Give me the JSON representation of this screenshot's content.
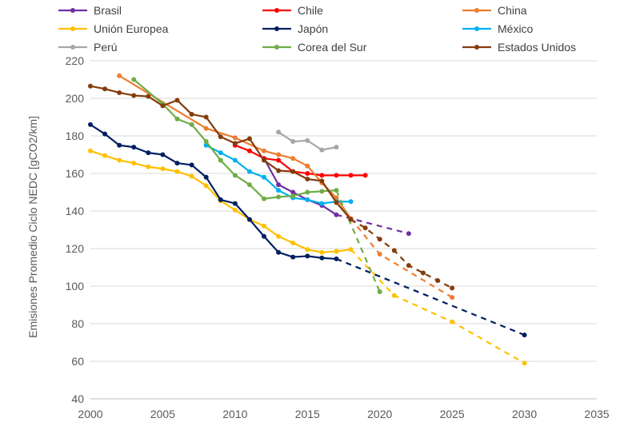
{
  "chart_data": {
    "type": "line",
    "title": "",
    "xlabel": "",
    "ylabel": "Emisiones Promedio Ciclo NEDC [gCO2/km]",
    "xlim": [
      2000,
      2035
    ],
    "ylim": [
      40,
      220
    ],
    "x_ticks": [
      "2000",
      "2005",
      "2010",
      "2015",
      "2020",
      "2025",
      "2030",
      "2035"
    ],
    "y_ticks": [
      "40",
      "60",
      "80",
      "100",
      "120",
      "140",
      "160",
      "180",
      "200",
      "220"
    ],
    "grid": "horizontal",
    "legend_position": "top",
    "series": [
      {
        "name": "Brasil",
        "color": "#7030A0",
        "x": [
          2012,
          2013,
          2014,
          2015,
          2016,
          2017
        ],
        "y": [
          168,
          154,
          150,
          146,
          143,
          138
        ],
        "projection": {
          "x": [
            2017,
            2022
          ],
          "y": [
            138,
            128
          ]
        }
      },
      {
        "name": "Chile",
        "color": "#FF0000",
        "x": [
          2010,
          2011,
          2012,
          2013,
          2014,
          2015,
          2016,
          2017,
          2018,
          2019
        ],
        "y": [
          175,
          172,
          168,
          167,
          161,
          160,
          159,
          159,
          159,
          159
        ],
        "projection": null
      },
      {
        "name": "China",
        "color": "#ED7D31",
        "x": [
          2002,
          2008,
          2010,
          2012,
          2013,
          2014,
          2015,
          2016,
          2017,
          2018
        ],
        "y": [
          212,
          184,
          179,
          172,
          170,
          168,
          164,
          155,
          147,
          136
        ],
        "projection": {
          "x": [
            2018,
            2020,
            2025
          ],
          "y": [
            136,
            117,
            94
          ]
        }
      },
      {
        "name": "Unión Europea",
        "color": "#FFC000",
        "x": [
          2000,
          2001,
          2002,
          2003,
          2004,
          2005,
          2006,
          2007,
          2008,
          2009,
          2010,
          2011,
          2012,
          2013,
          2014,
          2015,
          2016,
          2017,
          2018
        ],
        "y": [
          172,
          169.5,
          167,
          165.5,
          163.5,
          162.5,
          161,
          158.5,
          153.5,
          145.5,
          140.5,
          135.5,
          132,
          126.5,
          123,
          119.5,
          118,
          118.5,
          119.5
        ],
        "projection": {
          "x": [
            2018,
            2021,
            2025,
            2030
          ],
          "y": [
            119.5,
            95,
            81,
            59
          ]
        }
      },
      {
        "name": "Japón",
        "color": "#002060",
        "x": [
          2000,
          2001,
          2002,
          2003,
          2004,
          2005,
          2006,
          2007,
          2008,
          2009,
          2010,
          2011,
          2012,
          2013,
          2014,
          2015,
          2016,
          2017
        ],
        "y": [
          186,
          181,
          175,
          174,
          171,
          170,
          165.5,
          164.5,
          158,
          146,
          144,
          135.5,
          126.5,
          118,
          115.5,
          116,
          115,
          114.5
        ],
        "projection": {
          "x": [
            2017,
            2030
          ],
          "y": [
            114.5,
            74
          ]
        }
      },
      {
        "name": "México",
        "color": "#00B0F0",
        "x": [
          2008,
          2009,
          2010,
          2011,
          2012,
          2013,
          2014,
          2015,
          2016,
          2017,
          2018
        ],
        "y": [
          175,
          171,
          167,
          161,
          158,
          151,
          147,
          146,
          144,
          145,
          145
        ],
        "projection": null
      },
      {
        "name": "Perú",
        "color": "#A6A6A6",
        "x": [
          2013,
          2014,
          2015,
          2016,
          2017
        ],
        "y": [
          182,
          177,
          177.5,
          172.5,
          174
        ],
        "projection": null
      },
      {
        "name": "Corea del Sur",
        "color": "#70AD47",
        "x": [
          2003,
          2005,
          2006,
          2007,
          2008,
          2009,
          2010,
          2011,
          2012,
          2013,
          2014,
          2015,
          2016,
          2017
        ],
        "y": [
          210,
          197,
          189,
          186,
          177,
          167,
          159,
          154,
          146.5,
          147.5,
          148,
          150,
          150.5,
          151
        ],
        "projection": {
          "x": [
            2017,
            2020
          ],
          "y": [
            151,
            97
          ]
        }
      },
      {
        "name": "Estados Unidos",
        "color": "#843C0C",
        "x": [
          2000,
          2001,
          2002,
          2003,
          2004,
          2005,
          2006,
          2007,
          2008,
          2009,
          2010,
          2011,
          2012,
          2013,
          2014,
          2015,
          2016,
          2017,
          2018
        ],
        "y": [
          206.5,
          205,
          203,
          201.5,
          201,
          196,
          199,
          191.5,
          190,
          179.5,
          176,
          178.5,
          167,
          161.5,
          161,
          157,
          156,
          144.5,
          135.5
        ],
        "projection": {
          "x": [
            2018,
            2019,
            2020,
            2021,
            2022,
            2023,
            2024,
            2025
          ],
          "y": [
            135.5,
            131,
            125,
            119,
            111,
            107,
            103,
            99
          ]
        }
      }
    ]
  }
}
